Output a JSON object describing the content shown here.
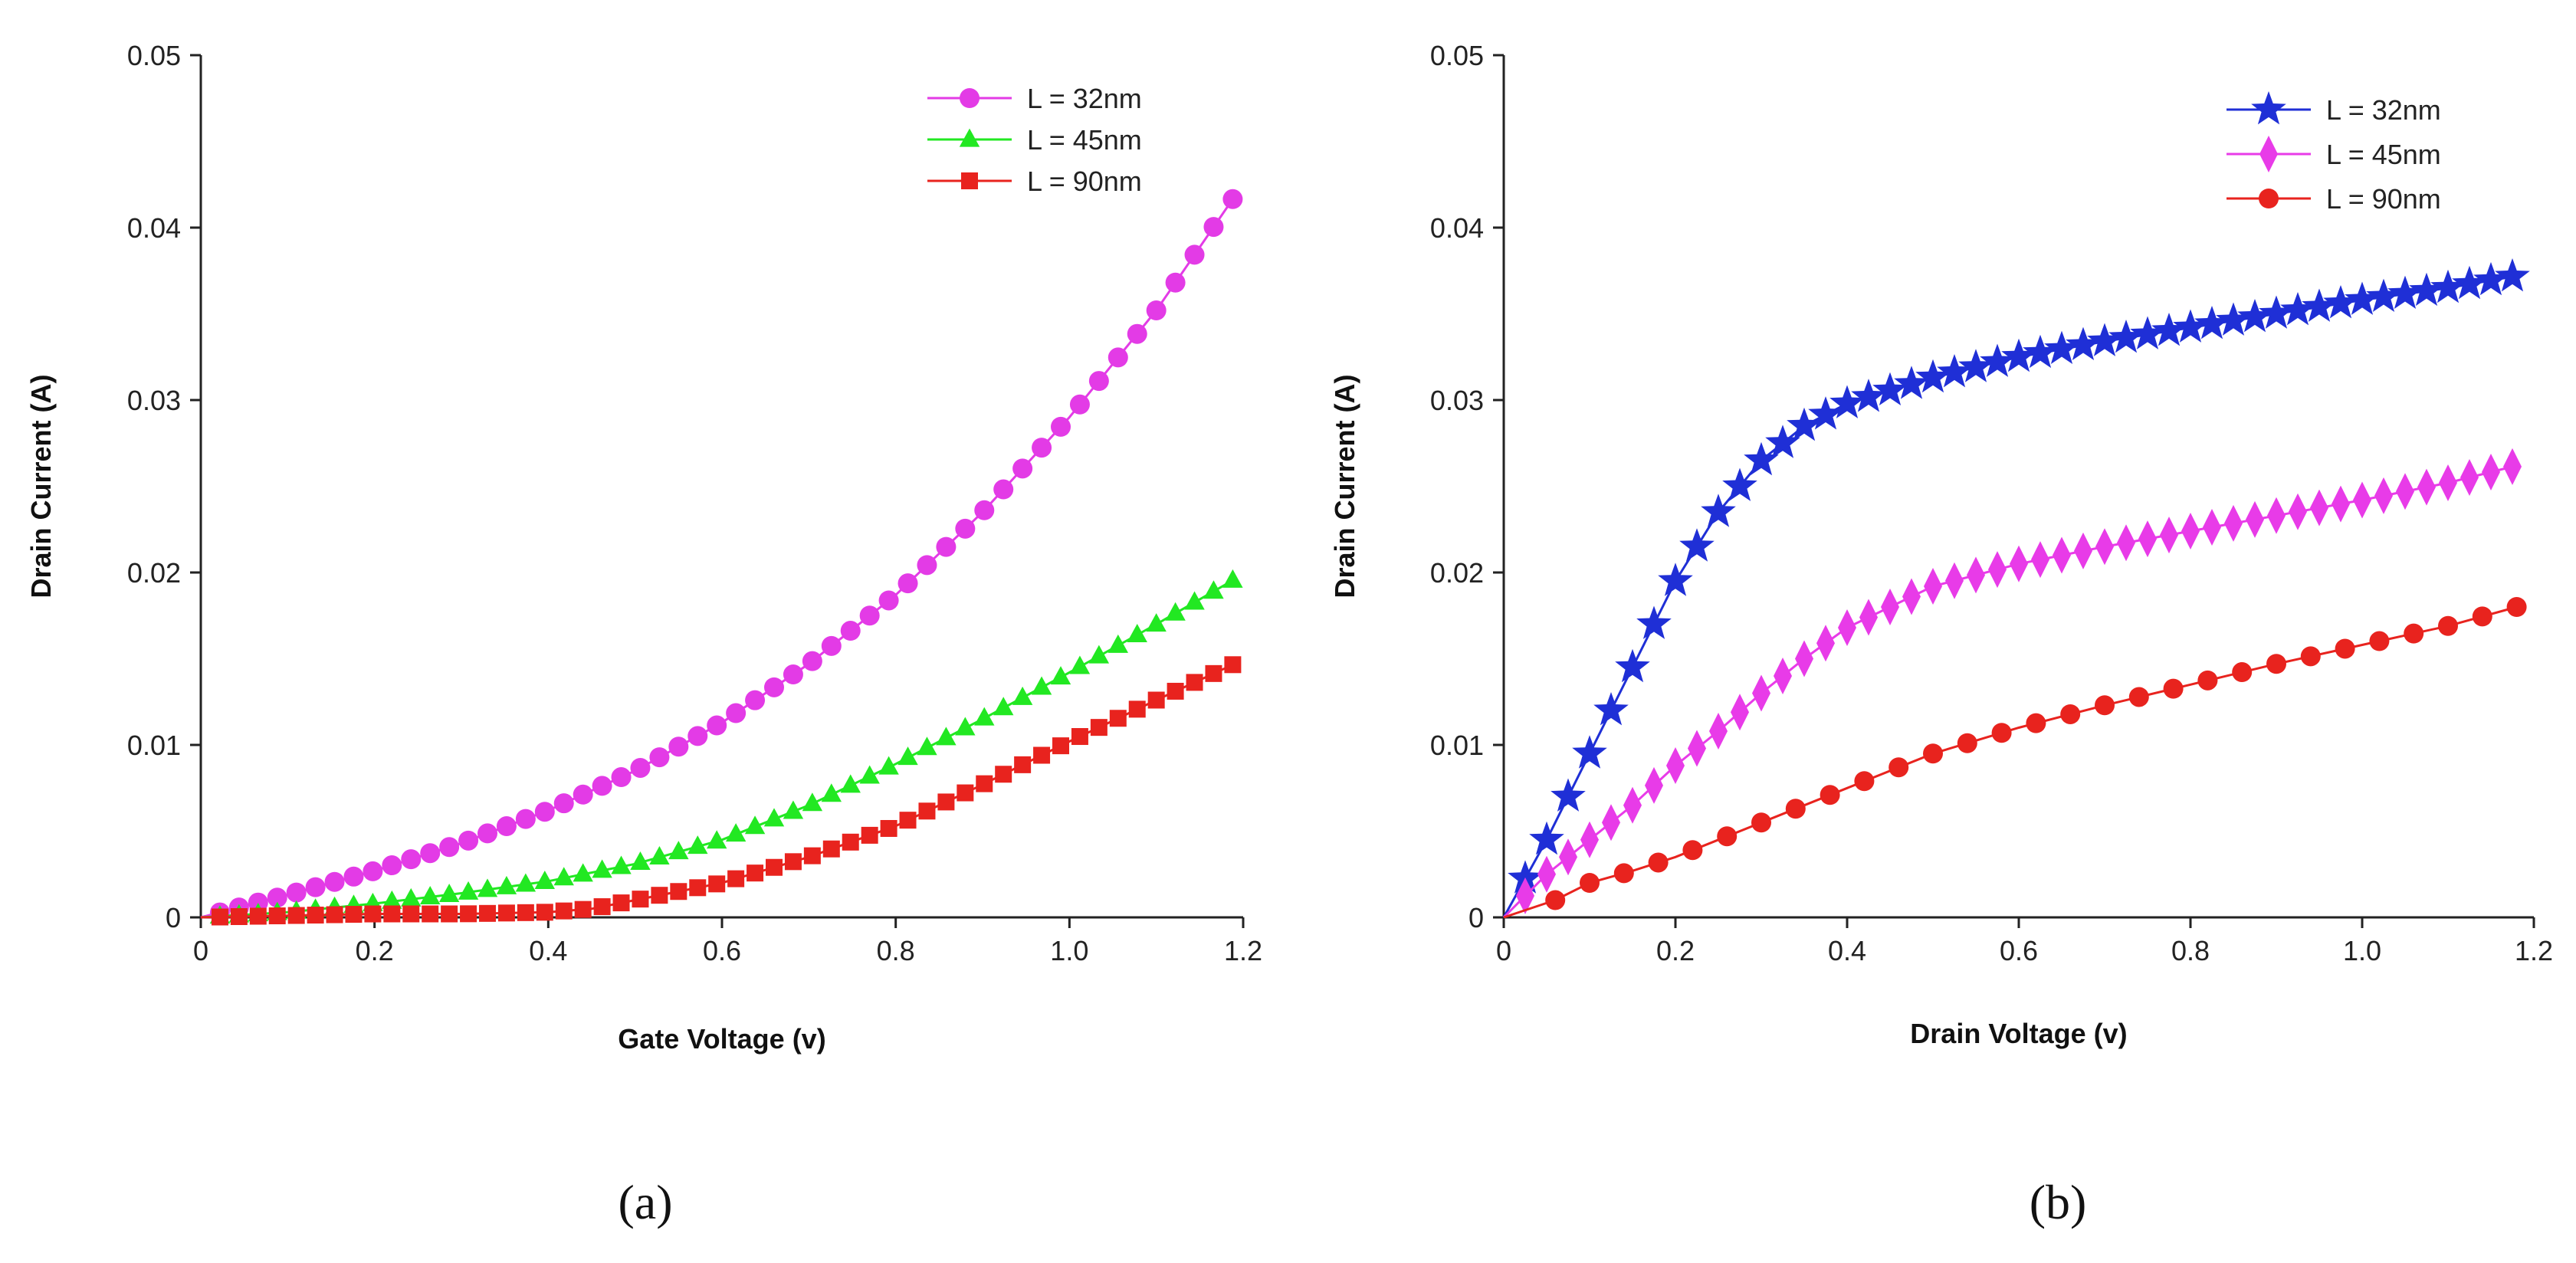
{
  "chart_data": [
    {
      "type": "line",
      "panel_label": "(a)",
      "xlabel": "Gate Voltage (v)",
      "ylabel": "Drain Current (A)",
      "xlim": [
        0,
        1.2
      ],
      "ylim": [
        0,
        0.05
      ],
      "x_ticks": [
        "0",
        "0.2",
        "0.4",
        "0.6",
        "0.8",
        "1.0",
        "1.2"
      ],
      "y_ticks": [
        "0",
        "0.01",
        "0.02",
        "0.03",
        "0.04",
        "0.05"
      ],
      "legend_position": "top-right",
      "series": [
        {
          "name": "L = 32nm",
          "color": "#E33BE6",
          "marker": "circle",
          "x": [
            0,
            0.1,
            0.2,
            0.3,
            0.4,
            0.5,
            0.6,
            0.7,
            0.8,
            0.9,
            1.0,
            1.1,
            1.19
          ],
          "y": [
            0,
            0.0013,
            0.0027,
            0.0043,
            0.0062,
            0.0085,
            0.0113,
            0.0147,
            0.0187,
            0.0235,
            0.029,
            0.0352,
            0.0418
          ]
        },
        {
          "name": "L = 45nm",
          "color": "#22E822",
          "marker": "triangle",
          "x": [
            0,
            0.1,
            0.2,
            0.3,
            0.4,
            0.5,
            0.6,
            0.7,
            0.8,
            0.9,
            1.0,
            1.1,
            1.19
          ],
          "y": [
            0,
            0.0003,
            0.0008,
            0.0014,
            0.0021,
            0.0031,
            0.0045,
            0.0065,
            0.0089,
            0.0115,
            0.0142,
            0.017,
            0.0196
          ]
        },
        {
          "name": "L = 90nm",
          "color": "#E8231E",
          "marker": "square",
          "x": [
            0,
            0.1,
            0.2,
            0.3,
            0.4,
            0.45,
            0.5,
            0.6,
            0.7,
            0.8,
            0.9,
            1.0,
            1.1,
            1.19
          ],
          "y": [
            0,
            0.0001,
            0.0002,
            0.0002,
            0.0003,
            0.0005,
            0.001,
            0.002,
            0.0035,
            0.0053,
            0.0077,
            0.0102,
            0.0126,
            0.0147
          ]
        }
      ]
    },
    {
      "type": "line",
      "panel_label": "(b)",
      "xlabel": "Drain Voltage (v)",
      "ylabel": "Drain Current (A)",
      "xlim": [
        0,
        1.2
      ],
      "ylim": [
        0,
        0.05
      ],
      "x_ticks": [
        "0",
        "0.2",
        "0.4",
        "0.6",
        "0.8",
        "1.0",
        "1.2"
      ],
      "y_ticks": [
        "0",
        "0.01",
        "0.02",
        "0.03",
        "0.04",
        "0.05"
      ],
      "legend_position": "top-right",
      "series": [
        {
          "name": "L = 32nm",
          "color": "#1F2FD6",
          "marker": "star",
          "x": [
            0,
            0.05,
            0.1,
            0.15,
            0.2,
            0.25,
            0.3,
            0.35,
            0.4,
            0.5,
            0.6,
            0.7,
            0.8,
            0.9,
            1.0,
            1.1,
            1.18
          ],
          "y": [
            0,
            0.0045,
            0.0095,
            0.0145,
            0.0195,
            0.0235,
            0.0265,
            0.0285,
            0.0298,
            0.0313,
            0.0325,
            0.0334,
            0.0342,
            0.035,
            0.0358,
            0.0365,
            0.0372
          ]
        },
        {
          "name": "L = 45nm",
          "color": "#E83BE8",
          "marker": "diamond",
          "x": [
            0,
            0.05,
            0.1,
            0.15,
            0.2,
            0.25,
            0.3,
            0.35,
            0.4,
            0.5,
            0.6,
            0.7,
            0.8,
            0.9,
            1.0,
            1.1,
            1.18
          ],
          "y": [
            0,
            0.0025,
            0.0045,
            0.0065,
            0.0088,
            0.0108,
            0.013,
            0.015,
            0.0168,
            0.0192,
            0.0205,
            0.0215,
            0.0224,
            0.0233,
            0.0242,
            0.0252,
            0.0262
          ]
        },
        {
          "name": "L = 90nm",
          "color": "#E8231E",
          "marker": "circle",
          "x": [
            0,
            0.06,
            0.1,
            0.15,
            0.2,
            0.25,
            0.3,
            0.35,
            0.4,
            0.5,
            0.6,
            0.7,
            0.8,
            0.9,
            1.0,
            1.1,
            1.18
          ],
          "y": [
            0,
            0.001,
            0.002,
            0.0027,
            0.0035,
            0.0045,
            0.0055,
            0.0065,
            0.0075,
            0.0095,
            0.011,
            0.0123,
            0.0135,
            0.0147,
            0.0158,
            0.0169,
            0.018
          ]
        }
      ]
    }
  ]
}
